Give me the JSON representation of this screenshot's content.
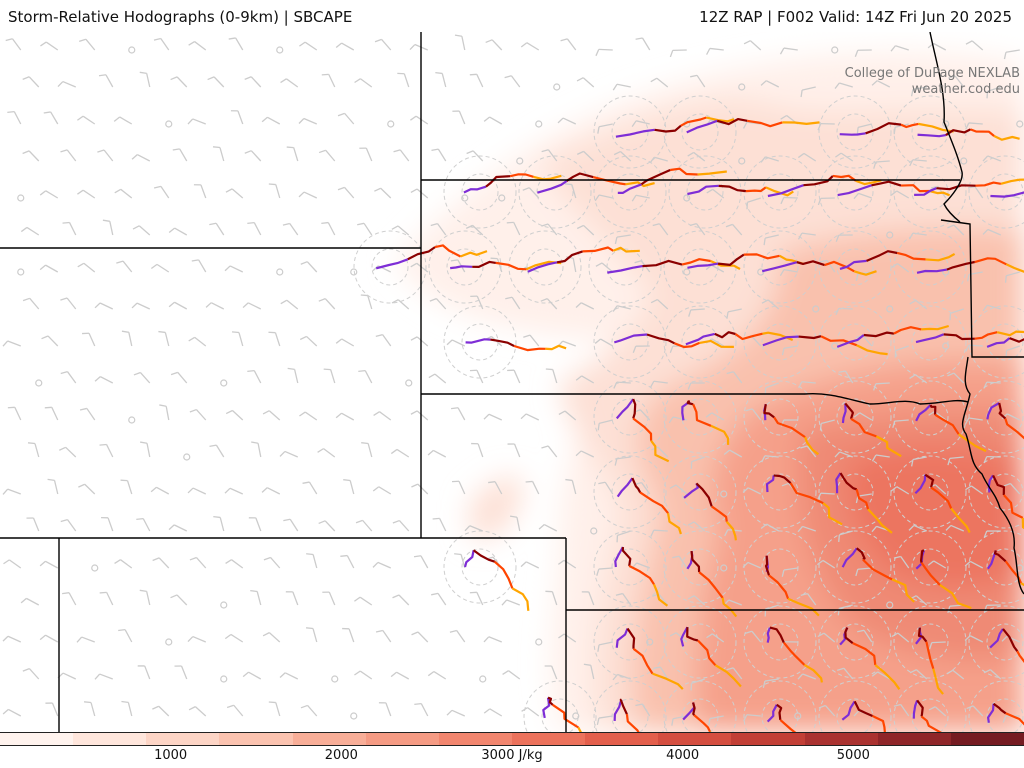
{
  "header": {
    "title_left": "Storm-Relative Hodographs (0-9km) | SBCAPE",
    "title_right": "12Z RAP | F002 Valid: 14Z Fri Jun 20 2025"
  },
  "credit": {
    "line1": "College of DuPage NEXLAB",
    "line2": "weather.cod.edu"
  },
  "colorbar": {
    "unit": "J/kg",
    "labels": [
      "1000",
      "2000",
      "3000 J/kg",
      "4000",
      "5000"
    ],
    "label_values": [
      1000,
      2000,
      3000,
      4000,
      5000
    ],
    "range": [
      0,
      6000
    ],
    "colors": [
      "#fff3ee",
      "#ffe6dc",
      "#fdd5c6",
      "#fbc3b0",
      "#f8ae98",
      "#f59b84",
      "#f2866f",
      "#ec725c",
      "#e35f4c",
      "#d44e40",
      "#c23f36",
      "#aa3230",
      "#8f2629",
      "#751c22"
    ]
  },
  "map": {
    "hodograph_colors": {
      "layer_0_1km": "#7e2dd6",
      "layer_1_3km": "#8b0000",
      "layer_3_6km": "#ff4500",
      "layer_6_9km": "#ffa500"
    },
    "wind_barb_color": "#cccccc",
    "boundary_color": "#000000"
  }
}
